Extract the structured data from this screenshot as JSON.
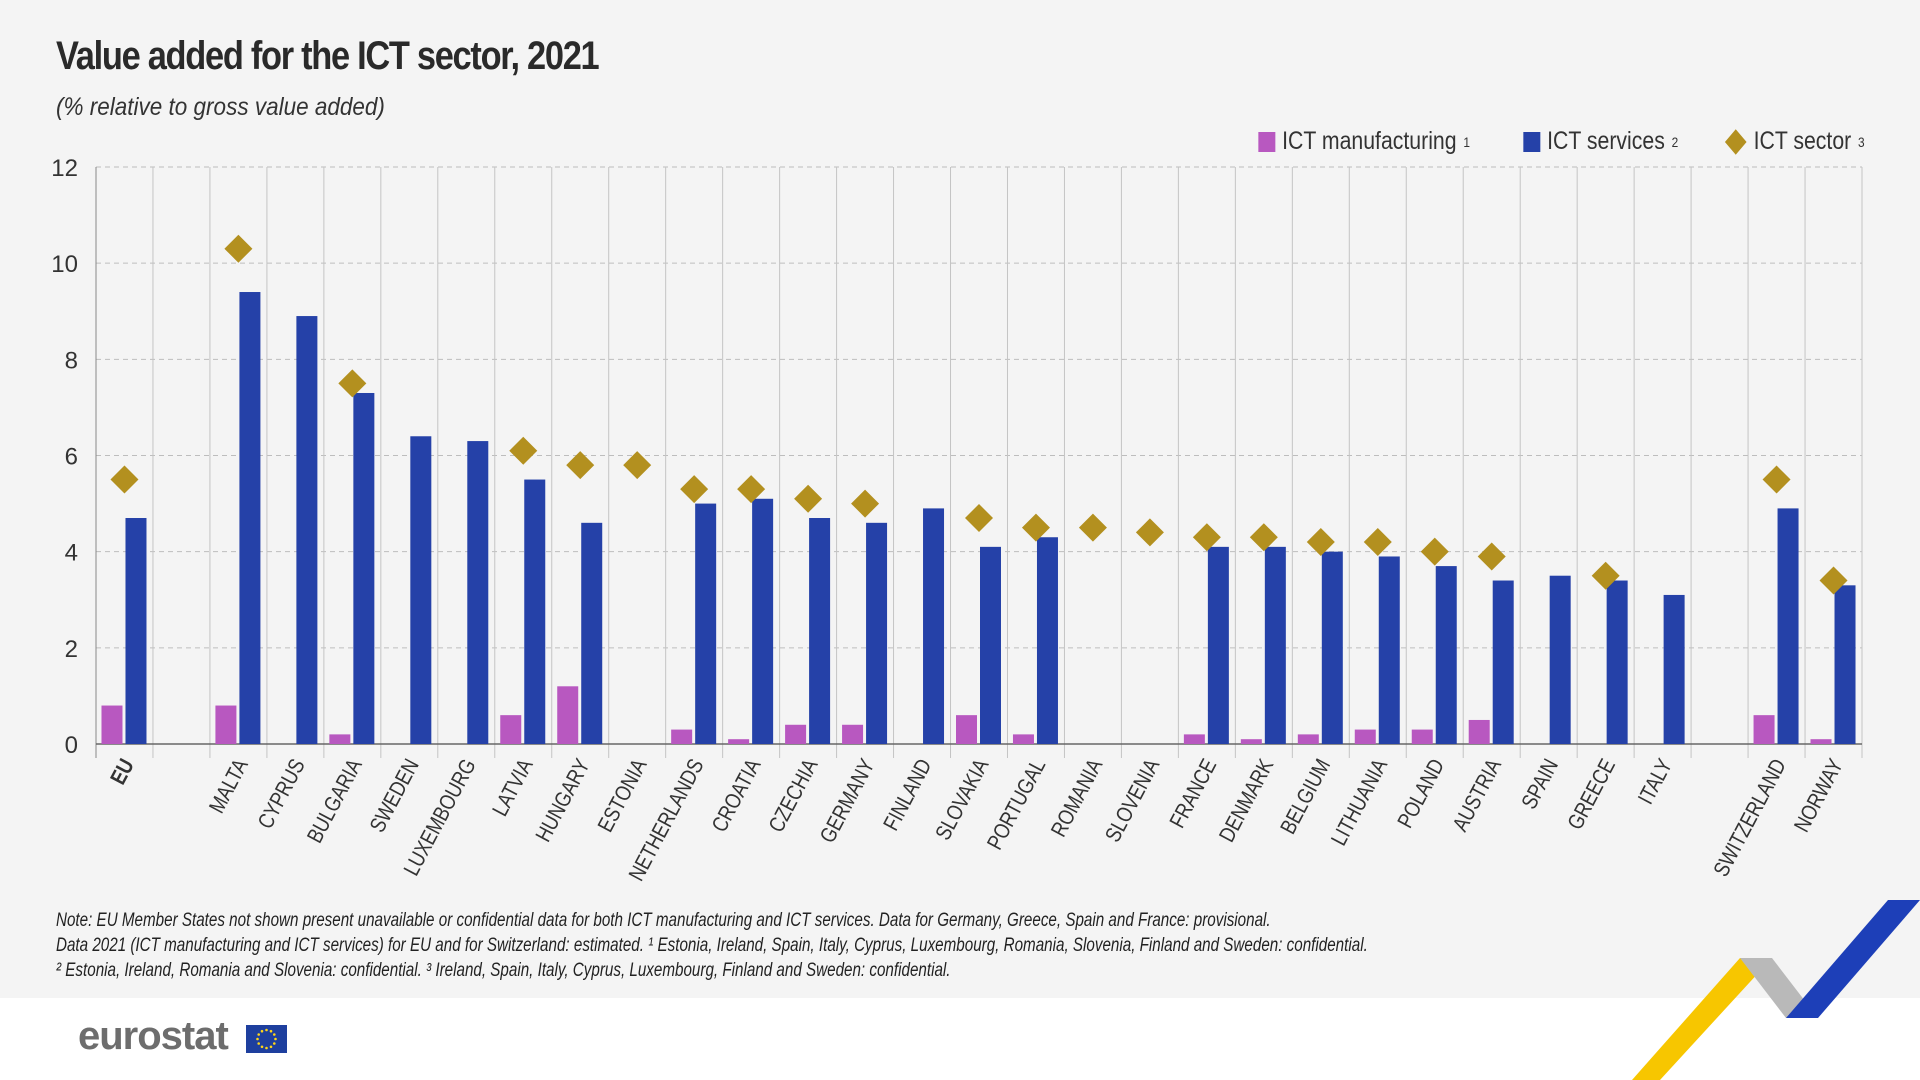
{
  "colors": {
    "manufacturing": "#b858c0",
    "services": "#2541a8",
    "sector": "#b3901f",
    "grid": "#bdbdbd",
    "axis": "#666666"
  },
  "footer": {
    "logo_text": "eurostat",
    "flag_icon": "eu-flag-icon"
  },
  "notes": [
    "Note: EU Member States not shown present unavailable or confidential data for both ICT manufacturing and ICT services. Data for Germany, Greece, Spain and France: provisional.",
    "Data 2021 (ICT manufacturing and ICT services) for EU and for Switzerland: estimated. ¹ Estonia, Ireland, Spain, Italy, Cyprus, Luxembourg, Romania, Slovenia, Finland and Sweden: confidential.",
    "² Estonia, Ireland, Romania and Slovenia: confidential. ³ Ireland, Spain, Italy, Cyprus, Luxembourg, Finland and Sweden: confidential."
  ],
  "chart_data": {
    "type": "bar",
    "title": "Value added for the ICT sector, 2021",
    "subtitle": "(% relative to gross value added)",
    "xlabel": "",
    "ylabel": "",
    "ylim": [
      0,
      12
    ],
    "yticks": [
      0,
      2,
      4,
      6,
      8,
      10,
      12
    ],
    "grid": true,
    "legend_placement": "top-right",
    "categories": [
      "EU",
      "",
      "MALTA",
      "CYPRUS",
      "BULGARIA",
      "SWEDEN",
      "LUXEMBOURG",
      "LATVIA",
      "HUNGARY",
      "ESTONIA",
      "NETHERLANDS",
      "CROATIA",
      "CZECHIA",
      "GERMANY",
      "FINLAND",
      "SLOVAKIA",
      "PORTUGAL",
      "ROMANIA",
      "SLOVENIA",
      "FRANCE",
      "DENMARK",
      "BELGIUM",
      "LITHUANIA",
      "POLAND",
      "AUSTRIA",
      "SPAIN",
      "GREECE",
      "ITALY",
      "",
      "SWITZERLAND",
      "NORWAY"
    ],
    "series": [
      {
        "name": "ICT manufacturing",
        "sup": "1",
        "kind": "bar",
        "values": [
          0.8,
          null,
          0.8,
          null,
          0.2,
          null,
          null,
          0.6,
          1.2,
          null,
          0.3,
          0.1,
          0.4,
          0.4,
          null,
          0.6,
          0.2,
          null,
          null,
          0.2,
          0.1,
          0.2,
          0.3,
          0.3,
          0.5,
          null,
          null,
          null,
          null,
          0.6,
          0.1
        ]
      },
      {
        "name": "ICT services",
        "sup": "2",
        "kind": "bar",
        "values": [
          4.7,
          null,
          9.4,
          8.9,
          7.3,
          6.4,
          6.3,
          5.5,
          4.6,
          null,
          5.0,
          5.1,
          4.7,
          4.6,
          4.9,
          4.1,
          4.3,
          null,
          null,
          4.1,
          4.1,
          4.0,
          3.9,
          3.7,
          3.4,
          3.5,
          3.4,
          3.1,
          null,
          4.9,
          3.3
        ]
      },
      {
        "name": "ICT sector",
        "sup": "3",
        "kind": "diamond",
        "values": [
          5.5,
          null,
          10.3,
          null,
          7.5,
          null,
          null,
          6.1,
          5.8,
          5.8,
          5.3,
          5.3,
          5.1,
          5.0,
          null,
          4.7,
          4.5,
          4.5,
          4.4,
          4.3,
          4.3,
          4.2,
          4.2,
          4.0,
          3.9,
          null,
          3.5,
          null,
          null,
          5.5,
          3.4
        ]
      }
    ]
  }
}
